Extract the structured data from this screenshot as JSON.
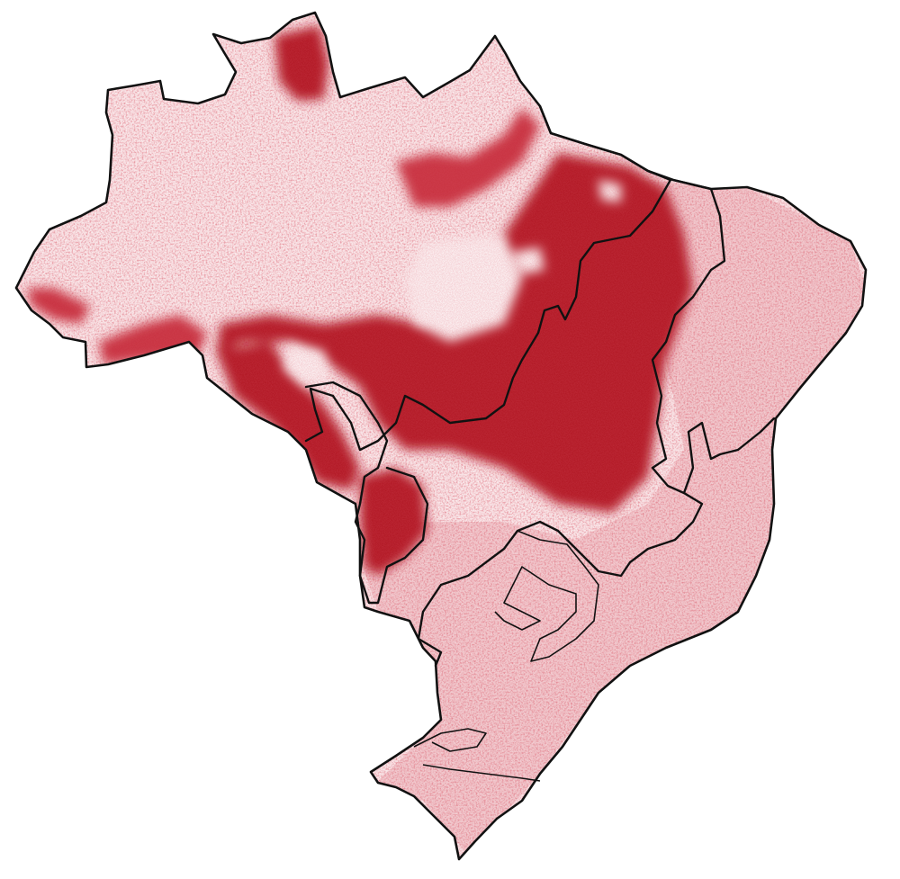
{
  "map": {
    "layers": [
      {
        "name": "country-outline",
        "stroke": "#111111"
      },
      {
        "name": "region-borders",
        "stroke": "#111111"
      },
      {
        "name": "intensity-raster",
        "palette": [
          "#ffffff",
          "#f3c9cf",
          "#d9606e",
          "#b01722"
        ]
      }
    ],
    "background": "#ffffff"
  }
}
